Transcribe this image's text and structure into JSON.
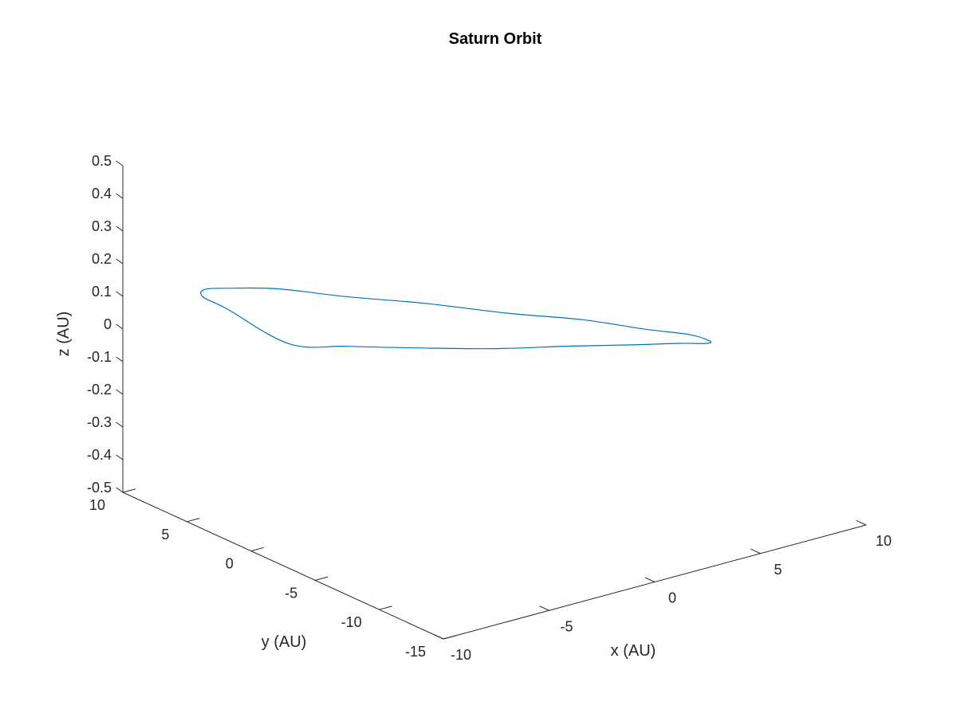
{
  "chart_data": {
    "type": "line",
    "projection": "3d",
    "title": "Saturn Orbit",
    "xlabel": "x (AU)",
    "ylabel": "y (AU)",
    "zlabel": "z (AU)",
    "xlim": [
      -10,
      10
    ],
    "ylim": [
      -15,
      10
    ],
    "zlim": [
      -0.5,
      0.5
    ],
    "xticks": [
      -10,
      -5,
      0,
      5,
      10
    ],
    "yticks": [
      -15,
      -10,
      -5,
      0,
      5,
      10
    ],
    "zticks": [
      -0.5,
      -0.4,
      -0.3,
      -0.2,
      -0.1,
      0,
      0.1,
      0.2,
      0.3,
      0.4,
      0.5
    ],
    "xtick_labels": [
      "-10",
      "-5",
      "0",
      "5",
      "10"
    ],
    "ytick_labels": [
      "-15",
      "-10",
      "-5",
      "0",
      "5",
      "10"
    ],
    "ztick_labels": [
      "-0.5",
      "-0.4",
      "-0.3",
      "-0.2",
      "-0.1",
      "0",
      "0.1",
      "0.2",
      "0.3",
      "0.4",
      "0.5"
    ],
    "grid": false,
    "series": [
      {
        "color": "#0072bd",
        "x": [
          -9.2,
          -8.72,
          -7.35,
          -5.22,
          -2.53,
          0.45,
          3.42,
          6.07,
          8.12,
          9.36,
          9.68,
          9.03,
          7.49,
          5.2,
          2.41,
          -0.63,
          -3.62,
          -6.26,
          -8.26,
          -9.41,
          -9.2
        ],
        "y": [
          3.2,
          5.83,
          8.02,
          9.53,
          10.15,
          9.83,
          8.59,
          6.57,
          4.02,
          1.19,
          -1.69,
          -4.39,
          -6.66,
          -8.32,
          -9.21,
          -9.26,
          -8.46,
          -6.88,
          -4.67,
          -2.03,
          3.2
        ],
        "z": [
          0.17,
          0.15,
          0.11,
          0.05,
          -0.01,
          -0.08,
          -0.13,
          -0.17,
          -0.18,
          -0.18,
          -0.15,
          -0.11,
          -0.05,
          0.02,
          0.08,
          0.13,
          0.16,
          0.18,
          0.18,
          0.16,
          0.17
        ]
      }
    ]
  }
}
